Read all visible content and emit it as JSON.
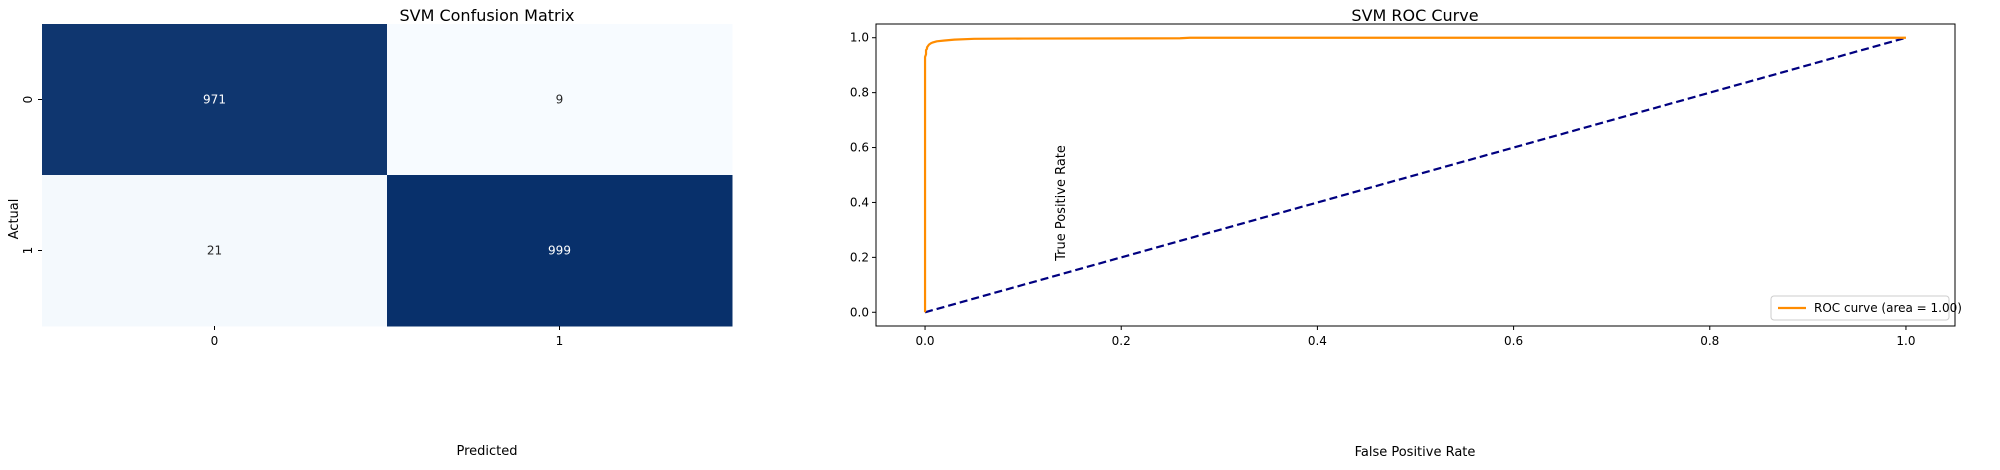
{
  "chart_data": [
    {
      "type": "heatmap",
      "title": "SVM Confusion Matrix",
      "xlabel": "Predicted",
      "ylabel": "Actual",
      "x_categories": [
        "0",
        "1"
      ],
      "y_categories": [
        "0",
        "1"
      ],
      "values": [
        [
          971,
          9
        ],
        [
          21,
          999
        ]
      ],
      "colormap": {
        "low": "#f7fbff",
        "high": "#08306b"
      },
      "colorbar": false
    },
    {
      "type": "line",
      "title": "SVM ROC Curve",
      "xlabel": "False Positive Rate",
      "ylabel": "True Positive Rate",
      "xlim": [
        -0.05,
        1.05
      ],
      "ylim": [
        -0.05,
        1.05
      ],
      "xticks": [
        "0.0",
        "0.2",
        "0.4",
        "0.6",
        "0.8",
        "1.0"
      ],
      "yticks": [
        "0.0",
        "0.2",
        "0.4",
        "0.6",
        "0.8",
        "1.0"
      ],
      "legend_position": "lower-right",
      "series": [
        {
          "name": "ROC curve (area = 1.00)",
          "color": "#ff8c00",
          "style": "solid",
          "x": [
            0.0,
            0.0,
            0.001,
            0.001,
            0.002,
            0.002,
            0.003,
            0.004,
            0.006,
            0.008,
            0.012,
            0.02,
            0.03,
            0.05,
            0.1,
            0.26,
            0.27,
            0.5,
            1.0
          ],
          "y": [
            0.0,
            0.93,
            0.94,
            0.955,
            0.96,
            0.965,
            0.97,
            0.975,
            0.98,
            0.983,
            0.987,
            0.99,
            0.993,
            0.996,
            0.997,
            0.998,
            1.0,
            1.0,
            1.0
          ]
        },
        {
          "name": "",
          "color": "#000080",
          "style": "dashed",
          "x": [
            0.0,
            1.0
          ],
          "y": [
            0.0,
            1.0
          ]
        }
      ]
    }
  ]
}
